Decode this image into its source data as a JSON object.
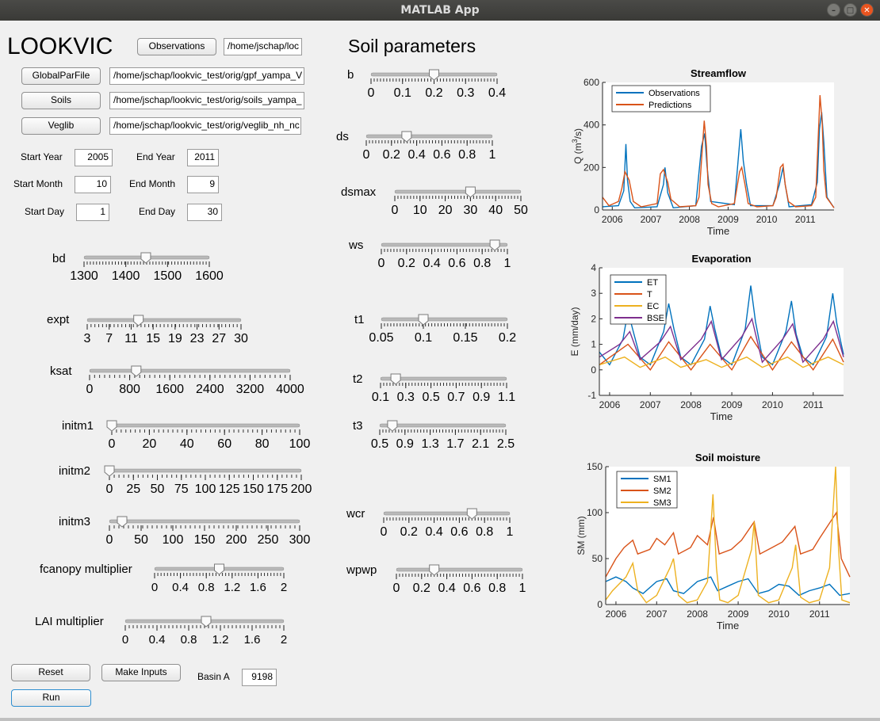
{
  "window": {
    "title": "MATLAB App"
  },
  "app_title": "LOOKVIC",
  "soil_title": "Soil parameters",
  "files": {
    "observations": {
      "button": "Observations",
      "path": "/home/jschap/loc"
    },
    "globalpar": {
      "button": "GlobalParFile",
      "path": "/home/jschap/lookvic_test/orig/gpf_yampa_V"
    },
    "soils": {
      "button": "Soils",
      "path": "/home/jschap/lookvic_test/orig/soils_yampa_"
    },
    "veglib": {
      "button": "Veglib",
      "path": "/home/jschap/lookvic_test/orig/veglib_nh_nc"
    }
  },
  "dates": {
    "start_year": {
      "label": "Start Year",
      "value": "2005"
    },
    "end_year": {
      "label": "End Year",
      "value": "2011"
    },
    "start_month": {
      "label": "Start Month",
      "value": "10"
    },
    "end_month": {
      "label": "End Month",
      "value": "9"
    },
    "start_day": {
      "label": "Start Day",
      "value": "1"
    },
    "end_day": {
      "label": "End Day",
      "value": "30"
    }
  },
  "left_sliders": [
    {
      "name": "bd",
      "label": "bd",
      "min": 1300,
      "max": 1600,
      "value": 1448,
      "ticks": [
        "1300",
        "1400",
        "1500",
        "1600"
      ]
    },
    {
      "name": "expt",
      "label": "expt",
      "min": 3,
      "max": 30,
      "value": 12,
      "ticks": [
        "3",
        "7",
        "11",
        "15",
        "19",
        "23",
        "27",
        "30"
      ]
    },
    {
      "name": "ksat",
      "label": "ksat",
      "min": 0,
      "max": 4000,
      "value": 930,
      "ticks": [
        "0",
        "800",
        "1600",
        "2400",
        "3200",
        "4000"
      ]
    },
    {
      "name": "initm1",
      "label": "initm1",
      "min": 0,
      "max": 100,
      "value": 0,
      "ticks": [
        "0",
        "20",
        "40",
        "60",
        "80",
        "100"
      ]
    },
    {
      "name": "initm2",
      "label": "initm2",
      "min": 0,
      "max": 200,
      "value": 0,
      "ticks": [
        "0",
        "25",
        "50",
        "75",
        "100",
        "125",
        "150",
        "175",
        "200"
      ]
    },
    {
      "name": "initm3",
      "label": "initm3",
      "min": 0,
      "max": 300,
      "value": 20,
      "ticks": [
        "0",
        "50",
        "100",
        "150",
        "200",
        "250",
        "300"
      ]
    },
    {
      "name": "fcanopy-multiplier",
      "label": "fcanopy multiplier",
      "min": 0,
      "max": 2,
      "value": 1.0,
      "ticks": [
        "0",
        "0.4",
        "0.8",
        "1.2",
        "1.6",
        "2"
      ]
    },
    {
      "name": "lai-multiplier",
      "label": "LAI multiplier",
      "min": 0,
      "max": 2,
      "value": 1.02,
      "ticks": [
        "0",
        "0.4",
        "0.8",
        "1.2",
        "1.6",
        "2"
      ]
    }
  ],
  "soil_sliders": [
    {
      "name": "b",
      "label": "b",
      "min": 0,
      "max": 0.4,
      "value": 0.2,
      "ticks": [
        "0",
        "0.1",
        "0.2",
        "0.3",
        "0.4"
      ]
    },
    {
      "name": "ds",
      "label": "ds",
      "min": 0,
      "max": 1,
      "value": 0.32,
      "ticks": [
        "0",
        "0.2",
        "0.4",
        "0.6",
        "0.8",
        "1"
      ]
    },
    {
      "name": "dsmax",
      "label": "dsmax",
      "min": 0,
      "max": 50,
      "value": 30,
      "ticks": [
        "0",
        "10",
        "20",
        "30",
        "40",
        "50"
      ]
    },
    {
      "name": "ws",
      "label": "ws",
      "min": 0,
      "max": 1,
      "value": 0.9,
      "ticks": [
        "0",
        "0.2",
        "0.4",
        "0.6",
        "0.8",
        "1"
      ]
    },
    {
      "name": "t1",
      "label": "t1",
      "min": 0.05,
      "max": 0.2,
      "value": 0.1,
      "ticks": [
        "0.05",
        "0.1",
        "0.15",
        "0.2"
      ]
    },
    {
      "name": "t2",
      "label": "t2",
      "min": 0.1,
      "max": 1.1,
      "value": 0.22,
      "ticks": [
        "0.1",
        "0.3",
        "0.5",
        "0.7",
        "0.9",
        "1.1"
      ]
    },
    {
      "name": "t3",
      "label": "t3",
      "min": 0.5,
      "max": 2.5,
      "value": 0.7,
      "ticks": [
        "0.5",
        "0.9",
        "1.3",
        "1.7",
        "2.1",
        "2.5"
      ]
    },
    {
      "name": "wcr",
      "label": "wcr",
      "min": 0,
      "max": 1,
      "value": 0.7,
      "ticks": [
        "0",
        "0.2",
        "0.4",
        "0.6",
        "0.8",
        "1"
      ]
    },
    {
      "name": "wpwp",
      "label": "wpwp",
      "min": 0,
      "max": 1,
      "value": 0.3,
      "ticks": [
        "0",
        "0.2",
        "0.4",
        "0.6",
        "0.8",
        "1"
      ]
    }
  ],
  "buttons": {
    "reset": "Reset",
    "make_inputs": "Make Inputs",
    "run": "Run"
  },
  "basin": {
    "label": "Basin A",
    "value": "9198"
  },
  "colors": {
    "blue": "#0072bd",
    "orange": "#d95319",
    "yellow": "#edb120",
    "purple": "#7e2f8e"
  },
  "chart_data": [
    {
      "type": "line",
      "title": "Streamflow",
      "xlabel": "Time",
      "ylabel": "Q (m3/s)",
      "x_ticks": [
        "2006",
        "2007",
        "2008",
        "2009",
        "2010",
        "2011"
      ],
      "y_ticks": [
        "0",
        "200",
        "400",
        "600"
      ],
      "xlim": [
        "2005-10-01",
        "2011-09-30"
      ],
      "ylim": [
        0,
        600
      ],
      "legend": "top-left",
      "series": [
        {
          "name": "Observations",
          "color": "#0072bd",
          "x": [
            "2005-10-01",
            "2006-03-01",
            "2006-04-20",
            "2006-05-10",
            "2006-05-25",
            "2006-06-20",
            "2006-08-01",
            "2007-03-01",
            "2007-05-01",
            "2007-05-15",
            "2007-06-10",
            "2007-08-01",
            "2008-03-01",
            "2008-04-25",
            "2008-05-25",
            "2008-06-15",
            "2008-07-20",
            "2009-03-01",
            "2009-05-01",
            "2009-05-25",
            "2009-06-25",
            "2009-08-01",
            "2010-03-01",
            "2010-05-01",
            "2010-06-05",
            "2010-06-25",
            "2010-08-01",
            "2011-03-01",
            "2011-04-25",
            "2011-05-15",
            "2011-06-05",
            "2011-06-25",
            "2011-07-25",
            "2011-09-30"
          ],
          "y": [
            15,
            20,
            90,
            310,
            140,
            40,
            10,
            15,
            120,
            200,
            80,
            10,
            20,
            300,
            360,
            210,
            40,
            25,
            380,
            230,
            120,
            20,
            20,
            120,
            200,
            120,
            15,
            25,
            130,
            380,
            460,
            320,
            60,
            10
          ]
        },
        {
          "name": "Predictions",
          "color": "#d95319",
          "x": [
            "2005-10-01",
            "2005-12-01",
            "2006-03-01",
            "2006-04-01",
            "2006-05-01",
            "2006-06-10",
            "2006-07-20",
            "2006-10-01",
            "2007-03-01",
            "2007-04-01",
            "2007-05-01",
            "2007-06-10",
            "2007-07-10",
            "2007-10-01",
            "2008-03-01",
            "2008-04-01",
            "2008-05-20",
            "2008-06-10",
            "2008-06-25",
            "2008-07-30",
            "2008-10-01",
            "2009-03-01",
            "2009-04-20",
            "2009-05-10",
            "2009-06-10",
            "2009-07-10",
            "2009-10-01",
            "2010-03-01",
            "2010-04-01",
            "2010-05-10",
            "2010-06-05",
            "2010-06-25",
            "2010-07-25",
            "2010-10-01",
            "2011-03-01",
            "2011-04-10",
            "2011-05-20",
            "2011-06-10",
            "2011-06-25",
            "2011-07-20",
            "2011-09-30"
          ],
          "y": [
            60,
            20,
            40,
            100,
            180,
            140,
            40,
            15,
            30,
            170,
            190,
            130,
            50,
            15,
            20,
            60,
            420,
            300,
            120,
            30,
            15,
            30,
            180,
            200,
            120,
            30,
            15,
            20,
            60,
            200,
            215,
            120,
            40,
            15,
            20,
            60,
            540,
            410,
            190,
            60,
            10
          ]
        }
      ]
    },
    {
      "type": "line",
      "title": "Evaporation",
      "xlabel": "Time",
      "ylabel": "E (mm/day)",
      "x_ticks": [
        "2006",
        "2007",
        "2008",
        "2009",
        "2010",
        "2011"
      ],
      "y_ticks": [
        "-1",
        "0",
        "1",
        "2",
        "3",
        "4"
      ],
      "xlim": [
        "2005-10-01",
        "2011-09-30"
      ],
      "ylim": [
        -1,
        4
      ],
      "legend": "top-left",
      "series": [
        {
          "name": "ET",
          "color": "#0072bd",
          "x": [
            "2005-10-01",
            "2006-01-01",
            "2006-05-01",
            "2006-06-15",
            "2006-08-01",
            "2006-10-01",
            "2007-01-01",
            "2007-05-01",
            "2007-06-15",
            "2007-08-01",
            "2007-10-01",
            "2008-01-01",
            "2008-05-01",
            "2008-06-20",
            "2008-08-01",
            "2008-10-01",
            "2009-01-01",
            "2009-05-01",
            "2009-06-20",
            "2009-08-01",
            "2009-10-01",
            "2010-01-01",
            "2010-05-01",
            "2010-06-20",
            "2010-08-01",
            "2010-10-01",
            "2011-01-01",
            "2011-05-01",
            "2011-06-25",
            "2011-08-01",
            "2011-09-30"
          ],
          "y": [
            0.7,
            0.2,
            1.2,
            2.3,
            1.5,
            0.5,
            0.2,
            1.5,
            2.6,
            1.6,
            0.5,
            0.2,
            1.2,
            2.5,
            1.6,
            0.5,
            0.2,
            1.6,
            3.3,
            1.9,
            0.5,
            0.2,
            1.5,
            2.7,
            1.4,
            0.5,
            0.2,
            1.3,
            3.0,
            1.8,
            0.6
          ]
        },
        {
          "name": "T",
          "color": "#d95319",
          "x": [
            "2005-10-01",
            "2006-06-15",
            "2007-01-01",
            "2007-06-15",
            "2008-01-01",
            "2008-06-20",
            "2009-01-01",
            "2009-06-20",
            "2010-01-01",
            "2010-06-20",
            "2011-01-01",
            "2011-06-25",
            "2011-09-30"
          ],
          "y": [
            0.2,
            1.0,
            0.0,
            1.1,
            0.0,
            1.0,
            0.0,
            1.3,
            0.0,
            1.1,
            0.0,
            1.2,
            0.3
          ]
        },
        {
          "name": "EC",
          "color": "#edb120",
          "x": [
            "2005-10-01",
            "2006-05-15",
            "2006-10-01",
            "2007-05-15",
            "2007-10-01",
            "2008-05-15",
            "2008-10-01",
            "2009-05-15",
            "2009-10-01",
            "2010-05-15",
            "2010-10-01",
            "2011-05-15",
            "2011-09-30"
          ],
          "y": [
            0.2,
            0.5,
            0.1,
            0.5,
            0.1,
            0.4,
            0.1,
            0.5,
            0.1,
            0.5,
            0.1,
            0.5,
            0.2
          ]
        },
        {
          "name": "BSE",
          "color": "#7e2f8e",
          "x": [
            "2005-10-01",
            "2006-04-01",
            "2006-07-01",
            "2006-10-01",
            "2007-04-01",
            "2007-07-01",
            "2007-10-01",
            "2008-04-01",
            "2008-07-01",
            "2008-10-01",
            "2009-04-01",
            "2009-07-01",
            "2009-10-01",
            "2010-04-01",
            "2010-07-01",
            "2010-10-01",
            "2011-04-01",
            "2011-07-01",
            "2011-09-30"
          ],
          "y": [
            0.5,
            1.0,
            1.5,
            0.4,
            1.1,
            1.7,
            0.4,
            1.2,
            1.9,
            0.4,
            1.3,
            2.0,
            0.3,
            1.2,
            1.8,
            0.3,
            1.2,
            1.9,
            0.5
          ]
        }
      ]
    },
    {
      "type": "line",
      "title": "Soil moisture",
      "xlabel": "Time",
      "ylabel": "SM (mm)",
      "x_ticks": [
        "2006",
        "2007",
        "2008",
        "2009",
        "2010",
        "2011"
      ],
      "y_ticks": [
        "0",
        "50",
        "100",
        "150"
      ],
      "xlim": [
        "2005-10-01",
        "2011-09-30"
      ],
      "ylim": [
        0,
        150
      ],
      "legend": "top-left",
      "series": [
        {
          "name": "SM1",
          "color": "#0072bd",
          "x": [
            "2005-10-01",
            "2006-01-01",
            "2006-04-01",
            "2006-06-01",
            "2006-09-01",
            "2007-01-01",
            "2007-04-01",
            "2007-06-01",
            "2007-09-01",
            "2008-01-01",
            "2008-05-01",
            "2008-07-01",
            "2008-10-01",
            "2009-01-01",
            "2009-04-01",
            "2009-07-01",
            "2009-10-01",
            "2010-01-01",
            "2010-04-01",
            "2010-07-01",
            "2010-10-01",
            "2011-01-01",
            "2011-04-01",
            "2011-07-01",
            "2011-09-30"
          ],
          "y": [
            25,
            30,
            25,
            18,
            12,
            25,
            28,
            15,
            12,
            25,
            30,
            15,
            20,
            25,
            28,
            12,
            15,
            22,
            20,
            10,
            15,
            18,
            22,
            10,
            12
          ]
        },
        {
          "name": "SM2",
          "color": "#d95319",
          "x": [
            "2005-10-01",
            "2006-01-01",
            "2006-03-15",
            "2006-06-01",
            "2006-07-15",
            "2006-11-01",
            "2007-01-01",
            "2007-03-15",
            "2007-06-01",
            "2007-07-15",
            "2007-11-01",
            "2008-01-01",
            "2008-04-01",
            "2008-05-25",
            "2008-07-15",
            "2008-11-01",
            "2009-02-01",
            "2009-05-25",
            "2009-07-15",
            "2009-11-01",
            "2010-02-01",
            "2010-05-25",
            "2010-07-15",
            "2010-11-01",
            "2011-01-01",
            "2011-06-01",
            "2011-07-15",
            "2011-09-30"
          ],
          "y": [
            30,
            50,
            62,
            70,
            55,
            60,
            72,
            65,
            78,
            55,
            62,
            75,
            65,
            95,
            55,
            60,
            70,
            90,
            55,
            62,
            68,
            85,
            55,
            60,
            72,
            100,
            50,
            30
          ]
        },
        {
          "name": "SM3",
          "color": "#edb120",
          "x": [
            "2005-10-01",
            "2005-12-01",
            "2006-04-01",
            "2006-06-01",
            "2006-07-15",
            "2006-10-01",
            "2007-01-01",
            "2007-05-01",
            "2007-06-01",
            "2007-07-15",
            "2007-10-01",
            "2008-01-01",
            "2008-04-01",
            "2008-05-20",
            "2008-06-20",
            "2008-07-20",
            "2008-10-01",
            "2009-01-01",
            "2009-05-01",
            "2009-05-25",
            "2009-07-01",
            "2009-10-01",
            "2010-01-01",
            "2010-05-01",
            "2010-06-01",
            "2010-07-15",
            "2010-10-01",
            "2011-01-01",
            "2011-04-01",
            "2011-05-25",
            "2011-06-20",
            "2011-07-20",
            "2011-09-30"
          ],
          "y": [
            5,
            15,
            30,
            45,
            15,
            2,
            10,
            40,
            50,
            10,
            2,
            5,
            25,
            120,
            40,
            5,
            2,
            10,
            60,
            90,
            10,
            2,
            5,
            40,
            65,
            8,
            2,
            5,
            40,
            150,
            60,
            5,
            2
          ]
        }
      ]
    }
  ]
}
